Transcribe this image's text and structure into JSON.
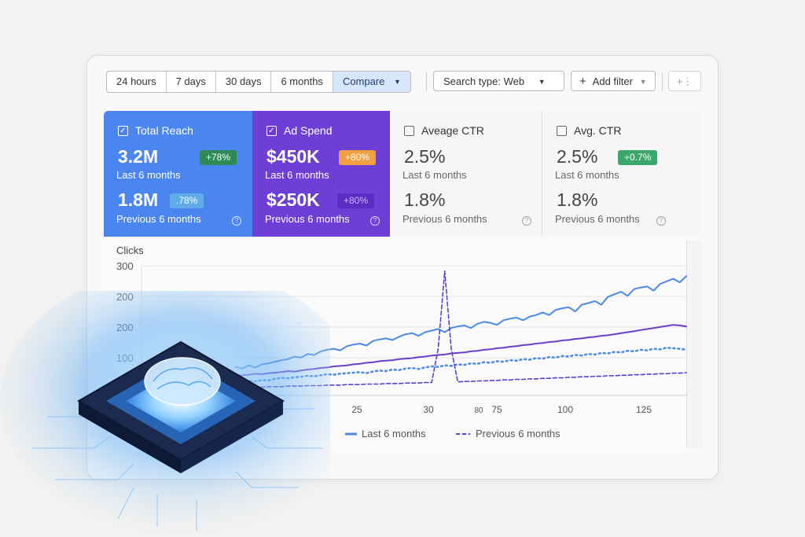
{
  "toolbar": {
    "ranges": [
      "24 hours",
      "7 days",
      "30 days",
      "6 months"
    ],
    "compare_label": "Compare",
    "search_type_label": "Search type: Web",
    "add_filter_label": "Add filter",
    "more_icon": "plus-more-icon"
  },
  "cards": [
    {
      "label": "Total Reach",
      "checked": true,
      "value": "3.2M",
      "badge": "+78%",
      "period": "Last 6 months",
      "prev_value": "1.8M",
      "prev_badge": ".78%",
      "prev_period": "Previous 6 months",
      "color": "#4b86f0"
    },
    {
      "label": "Ad Spend",
      "checked": true,
      "value": "$450K",
      "badge": "+80%",
      "period": "Last 6 months",
      "prev_value": "$250K",
      "prev_badge": "+80%",
      "prev_period": "Previous 6 months",
      "color": "#6e3fd5"
    },
    {
      "label": "Aveage CTR",
      "checked": false,
      "value": "2.5%",
      "period": "Last 6 months",
      "prev_value": "1.8%",
      "prev_period": "Previous 6 months"
    },
    {
      "label": "Avg. CTR",
      "checked": false,
      "value": "2.5%",
      "badge": "+0.7%",
      "period": "Last 6 months",
      "prev_value": "1.8%",
      "prev_period": "Previous 6 months"
    }
  ],
  "colors": {
    "badge_green": "#2e8b57",
    "badge_orange": "#f0a040",
    "badge_green_light": "#3aa86a",
    "line_blue": "#4a8ae8",
    "line_purple": "#6a3fc8",
    "line_dotted_blue": "#4a8ae8",
    "line_dashed_purple": "#5b3fd0"
  },
  "chart_data": {
    "type": "line",
    "ylabel": "Clicks",
    "y_ticks": [
      "300",
      "200",
      "200",
      "100"
    ],
    "x_ticks": [
      "25",
      "30",
      "80",
      "75",
      "100",
      "125"
    ],
    "legend": [
      "Last 6 months",
      "Previous 6 months"
    ],
    "legend_placement": "bottom",
    "grid": true,
    "series": [
      {
        "name": "Last 6 months",
        "style": "solid",
        "values": [
          105,
          102,
          108,
          104,
          110,
          112,
          115,
          118,
          120,
          125,
          123,
          130,
          128,
          135,
          138,
          140,
          137,
          145,
          148,
          150,
          146,
          155,
          158,
          160,
          157,
          163,
          168,
          170,
          165,
          172,
          175,
          178,
          172,
          180,
          183,
          185,
          180,
          188,
          192,
          190,
          186,
          195,
          198,
          200,
          195,
          202,
          205,
          210,
          205,
          215,
          218,
          220,
          212,
          225,
          228,
          232,
          225,
          240,
          245,
          250,
          242,
          255,
          258,
          260,
          252,
          265,
          270,
          275,
          268,
          280
        ]
      },
      {
        "name": "",
        "style": "solid",
        "values": [
          88,
          89,
          90,
          92,
          91,
          93,
          94,
          95,
          97,
          96,
          98,
          100,
          101,
          103,
          104,
          106,
          107,
          108,
          110,
          111,
          113,
          114,
          116,
          117,
          118,
          120,
          121,
          122,
          124,
          125,
          127,
          128,
          129,
          131,
          132,
          133,
          135,
          136,
          138,
          139,
          141,
          142,
          144,
          145,
          147,
          148,
          150,
          151,
          153,
          154,
          156,
          157,
          159,
          160,
          162,
          163,
          165,
          166,
          168,
          170,
          172,
          174,
          176,
          178,
          180,
          182,
          184,
          186,
          185,
          183
        ]
      },
      {
        "name": "",
        "style": "dotted",
        "values": [
          75,
          76,
          78,
          77,
          80,
          79,
          82,
          84,
          83,
          85,
          86,
          88,
          87,
          89,
          91,
          90,
          92,
          93,
          94,
          95,
          93,
          96,
          98,
          97,
          100,
          99,
          102,
          103,
          101,
          104,
          106,
          105,
          108,
          107,
          110,
          109,
          112,
          111,
          114,
          113,
          116,
          115,
          118,
          117,
          120,
          119,
          122,
          121,
          124,
          123,
          126,
          125,
          128,
          127,
          130,
          129,
          132,
          131,
          134,
          133,
          136,
          135,
          138,
          137,
          140,
          139,
          142,
          141,
          140,
          138
        ]
      },
      {
        "name": "Previous 6 months",
        "style": "dashed",
        "values": [
          65,
          65,
          66,
          66,
          66,
          67,
          67,
          67,
          68,
          68,
          68,
          69,
          69,
          69,
          70,
          70,
          70,
          71,
          71,
          71,
          72,
          72,
          72,
          73,
          73,
          73,
          74,
          74,
          74,
          75,
          75,
          140,
          290,
          140,
          76,
          77,
          77,
          78,
          78,
          79,
          79,
          80,
          80,
          81,
          81,
          82,
          82,
          83,
          83,
          84,
          84,
          85,
          85,
          86,
          86,
          87,
          87,
          88,
          88,
          89,
          89,
          90,
          90,
          91,
          91,
          92,
          92,
          93,
          93,
          94
        ]
      }
    ]
  }
}
